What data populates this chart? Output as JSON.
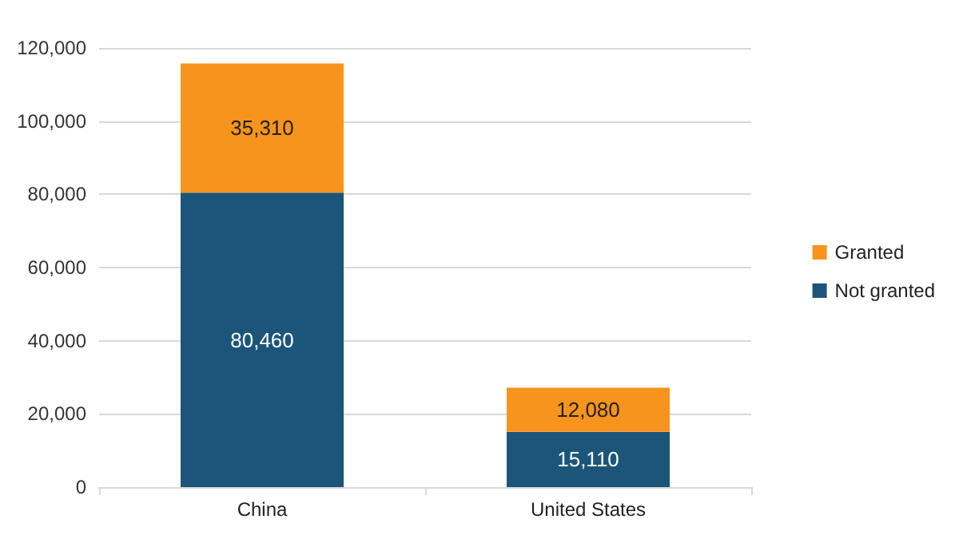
{
  "chart_data": {
    "type": "bar",
    "stacked": true,
    "categories": [
      "China",
      "United States"
    ],
    "series": [
      {
        "name": "Not granted",
        "color": "#1b5579",
        "values": [
          80460,
          15110
        ],
        "value_labels": [
          "80,460",
          "15,110"
        ]
      },
      {
        "name": "Granted",
        "color": "#f7941d",
        "values": [
          35310,
          12080
        ],
        "value_labels": [
          "35,310",
          "12,080"
        ]
      }
    ],
    "ylim": [
      0,
      120000
    ],
    "yticks": [
      {
        "value": 0,
        "label": "0"
      },
      {
        "value": 20000,
        "label": "20,000"
      },
      {
        "value": 40000,
        "label": "40,000"
      },
      {
        "value": 60000,
        "label": "60,000"
      },
      {
        "value": 80000,
        "label": "80,000"
      },
      {
        "value": 100000,
        "label": "100,000"
      },
      {
        "value": 120000,
        "label": "120,000"
      }
    ],
    "grid": "y",
    "legend": "right"
  }
}
